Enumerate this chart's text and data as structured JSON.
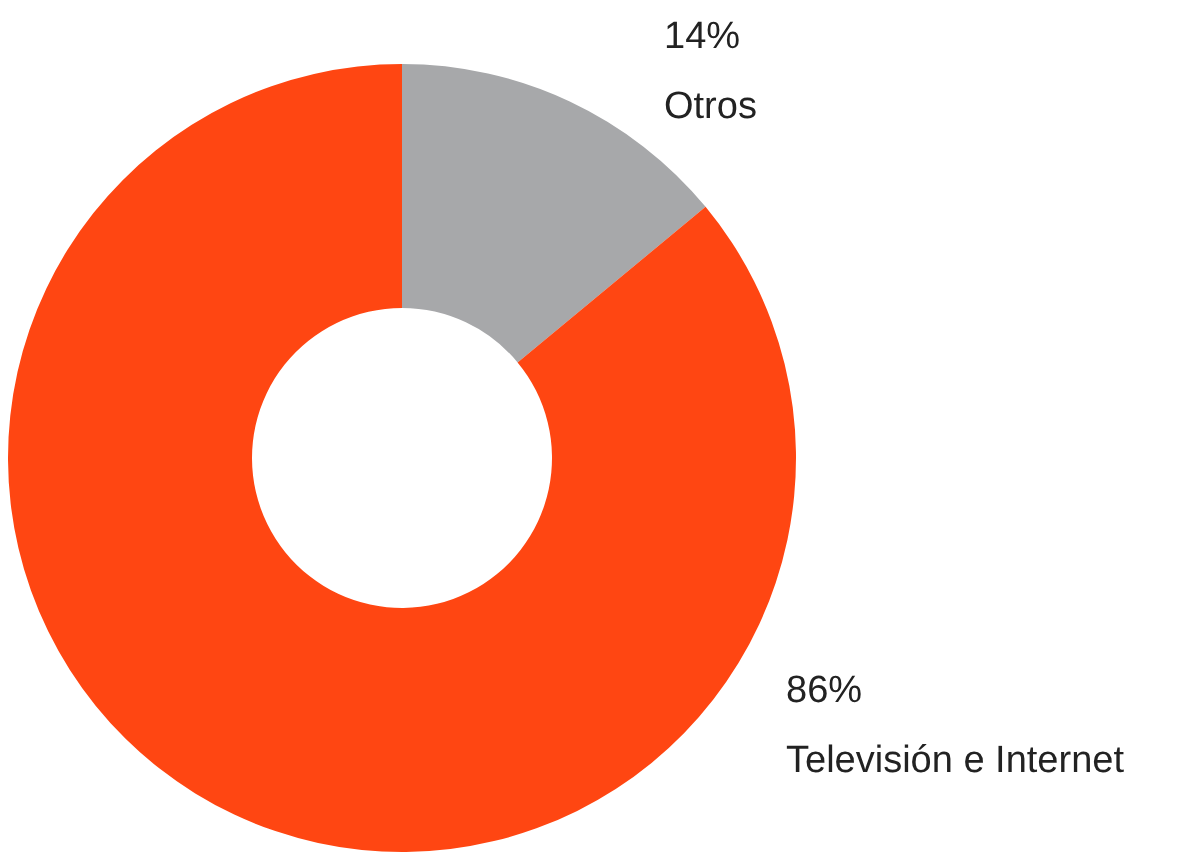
{
  "chart_data": {
    "type": "donut",
    "categories": [
      "Otros",
      "Televisión e Internet"
    ],
    "values": [
      14,
      86
    ],
    "colors": [
      "#a7a8aa",
      "#ff4612"
    ],
    "value_labels": [
      "14%",
      "86%"
    ],
    "legend": false
  }
}
